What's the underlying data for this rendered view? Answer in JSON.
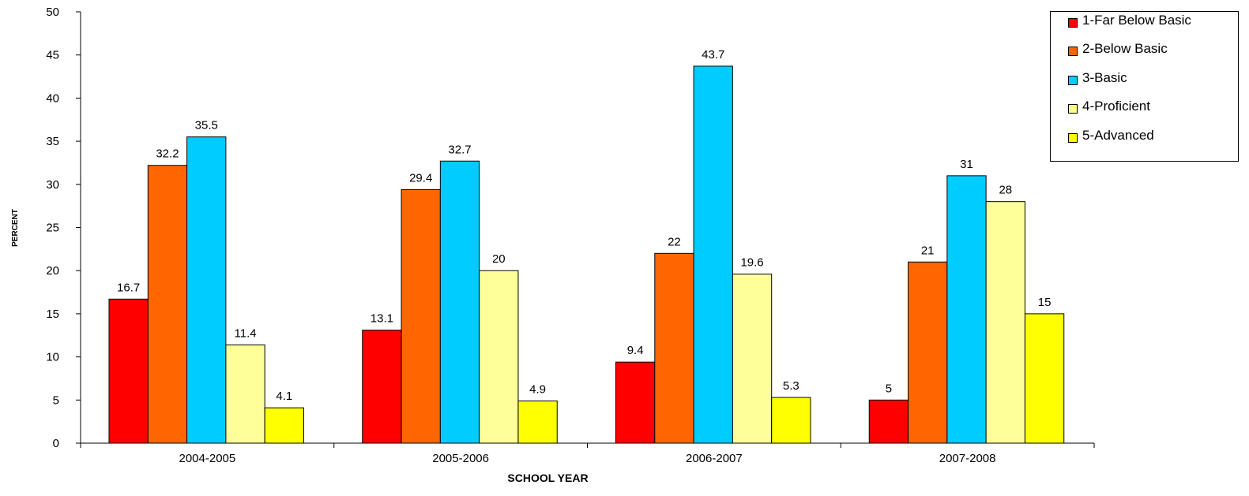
{
  "chart_data": {
    "type": "bar",
    "title": "",
    "xlabel": "SCHOOL YEAR",
    "ylabel": "PERCENT",
    "ylim": [
      0,
      50
    ],
    "yticks": [
      0,
      5,
      10,
      15,
      20,
      25,
      30,
      35,
      40,
      45,
      50
    ],
    "categories": [
      "2004-2005",
      "2005-2006",
      "2006-2007",
      "2007-2008"
    ],
    "series": [
      {
        "name": "1-Far Below Basic",
        "color": "#ff0000",
        "values": [
          16.7,
          13.1,
          9.4,
          5
        ]
      },
      {
        "name": "2-Below Basic",
        "color": "#ff6600",
        "values": [
          32.2,
          29.4,
          22,
          21
        ]
      },
      {
        "name": "3-Basic",
        "color": "#00ccff",
        "values": [
          35.5,
          32.7,
          43.7,
          31
        ]
      },
      {
        "name": "4-Proficient",
        "color": "#ffff99",
        "values": [
          11.4,
          20,
          19.6,
          28
        ]
      },
      {
        "name": "5-Advanced",
        "color": "#ffff00",
        "values": [
          4.1,
          4.9,
          5.3,
          15
        ]
      }
    ],
    "data_labels": true,
    "grid": false,
    "legend_position": "top-right"
  }
}
